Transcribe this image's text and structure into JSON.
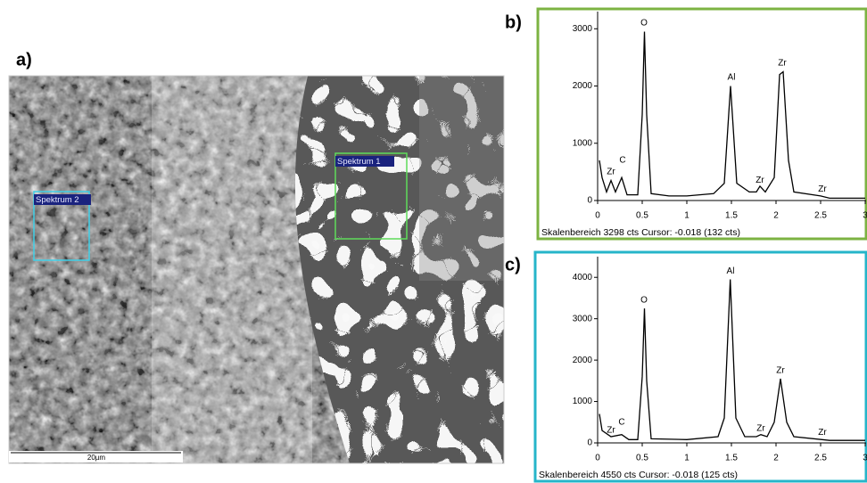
{
  "labels": {
    "a": "a)",
    "b": "b)",
    "c": "c)"
  },
  "sem": {
    "spectrum_boxes": [
      "Spektrum 2",
      "Spektrum 1"
    ],
    "scale_bar": "20µm"
  },
  "chart_data": [
    {
      "type": "line",
      "border": "#7cb342",
      "color": "#000000",
      "caption": "Skalenbereich 3298 cts Cursor: -0.018 (132 cts)",
      "x": [
        0.02,
        0.05,
        0.1,
        0.15,
        0.2,
        0.27,
        0.33,
        0.45,
        0.5,
        0.525,
        0.55,
        0.6,
        0.8,
        1.0,
        1.3,
        1.42,
        1.49,
        1.56,
        1.7,
        1.78,
        1.82,
        1.88,
        1.98,
        2.04,
        2.08,
        2.14,
        2.2,
        2.5,
        2.6,
        3.0
      ],
      "values": [
        700,
        400,
        150,
        350,
        150,
        400,
        100,
        100,
        1500,
        2950,
        1500,
        120,
        80,
        80,
        120,
        300,
        2000,
        300,
        150,
        150,
        250,
        150,
        400,
        2200,
        2250,
        700,
        150,
        80,
        40,
        40
      ],
      "xlim": [
        0,
        3
      ],
      "xticks": [
        0,
        0.5,
        1,
        1.5,
        2,
        2.5,
        3
      ],
      "ylim": [
        0,
        3300
      ],
      "yticks": [
        0,
        1000,
        2000,
        3000
      ],
      "annotations": [
        {
          "text": "O",
          "x": 0.52,
          "y": 3100
        },
        {
          "text": "Al",
          "x": 1.5,
          "y": 2150
        },
        {
          "text": "Zr",
          "x": 2.07,
          "y": 2400
        },
        {
          "text": "C",
          "x": 0.28,
          "y": 700
        },
        {
          "text": "Zr",
          "x": 0.15,
          "y": 500
        },
        {
          "text": "Zr",
          "x": 1.82,
          "y": 350
        },
        {
          "text": "Zr",
          "x": 2.52,
          "y": 200
        }
      ]
    },
    {
      "type": "line",
      "border": "#26b5c9",
      "color": "#000000",
      "caption": "Skalenbereich 4550 cts Cursor: -0.018 (125 cts)",
      "x": [
        0.02,
        0.05,
        0.15,
        0.27,
        0.35,
        0.45,
        0.5,
        0.525,
        0.55,
        0.6,
        1.0,
        1.35,
        1.42,
        1.487,
        1.55,
        1.65,
        1.78,
        1.83,
        1.9,
        1.98,
        2.05,
        2.12,
        2.2,
        2.6,
        3.0
      ],
      "values": [
        700,
        300,
        150,
        200,
        80,
        80,
        1600,
        3250,
        1500,
        100,
        80,
        150,
        600,
        3950,
        600,
        150,
        150,
        200,
        150,
        500,
        1550,
        500,
        150,
        60,
        60
      ],
      "xlim": [
        0,
        3
      ],
      "xticks": [
        0,
        0.5,
        1,
        1.5,
        2,
        2.5,
        3
      ],
      "ylim": [
        0,
        4500
      ],
      "yticks": [
        0,
        1000,
        2000,
        3000,
        4000
      ],
      "annotations": [
        {
          "text": "O",
          "x": 0.52,
          "y": 3450
        },
        {
          "text": "Al",
          "x": 1.49,
          "y": 4150
        },
        {
          "text": "Zr",
          "x": 2.05,
          "y": 1750
        },
        {
          "text": "C",
          "x": 0.27,
          "y": 500
        },
        {
          "text": "Zr",
          "x": 0.15,
          "y": 300
        },
        {
          "text": "Zr",
          "x": 1.83,
          "y": 350
        },
        {
          "text": "Zr",
          "x": 2.52,
          "y": 250
        }
      ]
    }
  ]
}
